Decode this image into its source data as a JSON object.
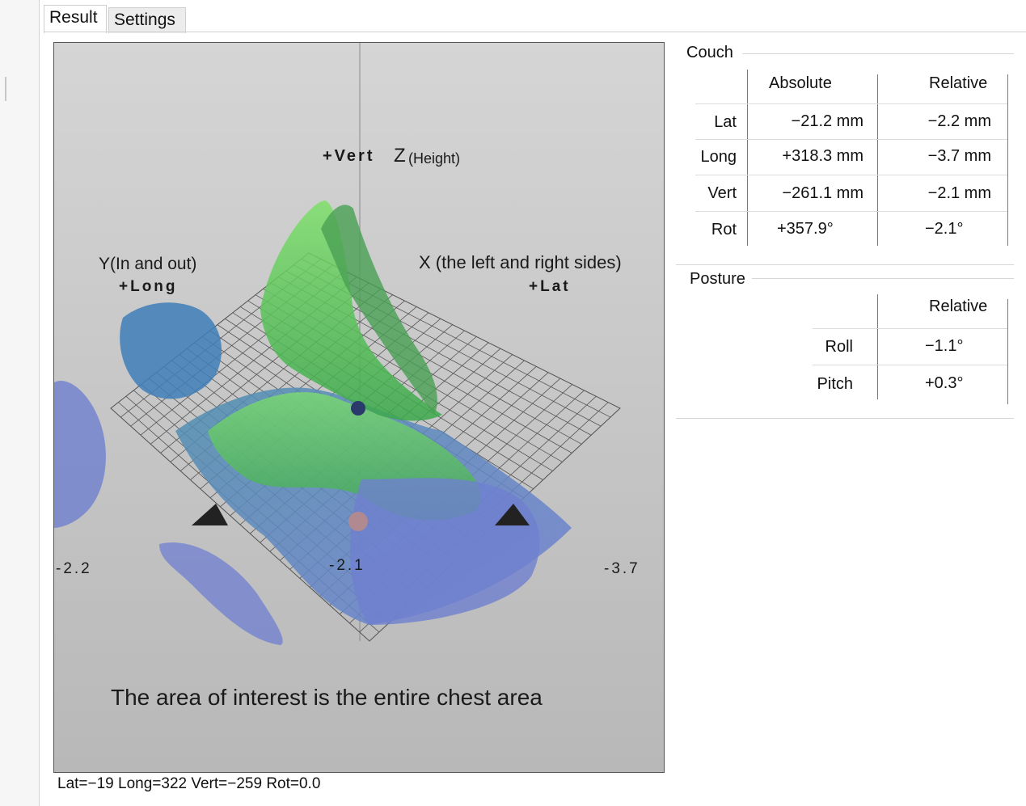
{
  "tabs": [
    {
      "label": "Result"
    },
    {
      "label": "Settings"
    }
  ],
  "viewer": {
    "axis_z_label": "+Vert",
    "axis_z_name": "Z",
    "axis_z_note": "(Height)",
    "axis_y_name": "Y(In and out)",
    "axis_y_label": "+Long",
    "axis_x_name": "X  (the left and right sides)",
    "axis_x_label": "+Lat",
    "value_left": "-2.2",
    "value_center": "-2.1",
    "value_right": "-3.7",
    "caption": "The area of interest is the entire chest area",
    "colors": {
      "surface_green": "#5ed45a",
      "surface_blue": "#6f7fd0",
      "grid": "#555555"
    }
  },
  "status": "Lat=−19 Long=322 Vert=−259 Rot=0.0",
  "couch": {
    "title": "Couch",
    "headers": {
      "absolute": "Absolute",
      "relative": "Relative"
    },
    "rows": [
      {
        "label": "Lat",
        "absolute": "−21.2 mm",
        "relative": "−2.2 mm"
      },
      {
        "label": "Long",
        "absolute": "+318.3 mm",
        "relative": "−3.7 mm"
      },
      {
        "label": "Vert",
        "absolute": "−261.1 mm",
        "relative": "−2.1 mm"
      },
      {
        "label": "Rot",
        "absolute": "+357.9°",
        "relative": "−2.1°"
      }
    ]
  },
  "posture": {
    "title": "Posture",
    "header_relative": "Relative",
    "rows": [
      {
        "label": "Roll",
        "relative": "−1.1°"
      },
      {
        "label": "Pitch",
        "relative": "+0.3°"
      }
    ]
  }
}
